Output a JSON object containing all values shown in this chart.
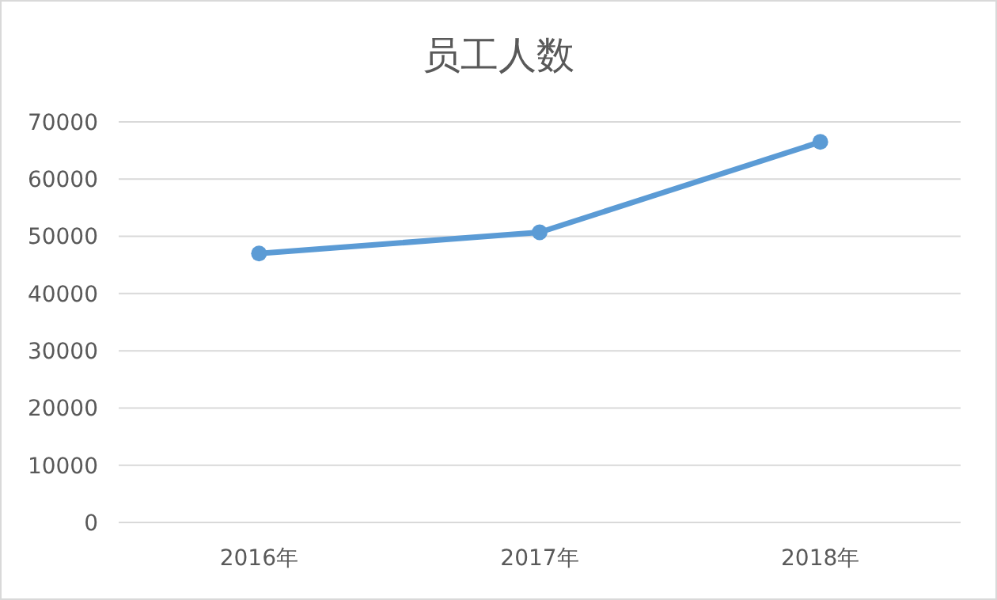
{
  "chart_data": {
    "type": "line",
    "title": "员工人数",
    "categories": [
      "2016年",
      "2017年",
      "2018年"
    ],
    "series": [
      {
        "color": "#5b9bd5",
        "values": [
          47000,
          50700,
          66500
        ]
      }
    ],
    "ylim": [
      0,
      70000
    ],
    "yticks": [
      0,
      10000,
      20000,
      30000,
      40000,
      50000,
      60000,
      70000
    ],
    "grid": "y",
    "marker": "circle",
    "line_style": "solid"
  }
}
